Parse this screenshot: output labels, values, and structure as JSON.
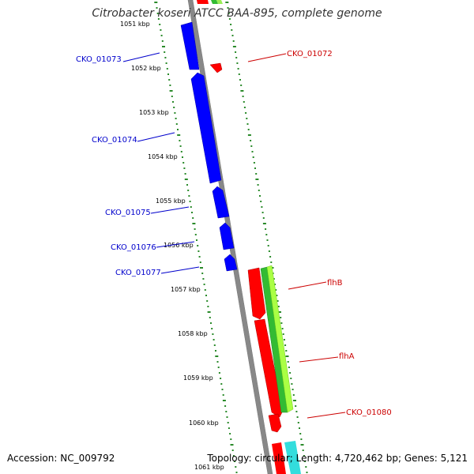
{
  "title": "Citrobacter koseri ATCC BAA-895, complete genome",
  "accession_text": "Accession: NC_009792",
  "summary_text": "Topology: circular; Length: 4,720,462 bp; Genes: 5,121",
  "colors": {
    "backbone": "#888888",
    "forward_strand_label": "#cc0000",
    "reverse_strand_label": "#0000cc",
    "dot_track": "#2a8a2a",
    "gene_blue": "#0000ff",
    "gene_red": "#ff0000",
    "gene_green": "#33bb33",
    "gene_lightgreen": "#aaff44",
    "gene_cyan": "#33dddd"
  },
  "scale": {
    "unit": "kbp",
    "ticks": [
      "1051 kbp",
      "1052 kbp",
      "1053 kbp",
      "1054 kbp",
      "1055 kbp",
      "1056 kbp",
      "1057 kbp",
      "1058 kbp",
      "1059 kbp",
      "1060 kbp",
      "1061 kbp"
    ]
  },
  "genes_reverse": [
    {
      "label": "CKO_01073"
    },
    {
      "label": "CKO_01074"
    },
    {
      "label": "CKO_01075"
    },
    {
      "label": "CKO_01076"
    },
    {
      "label": "CKO_01077"
    }
  ],
  "genes_forward": [
    {
      "label": "CKO_01072"
    },
    {
      "label": "flhB"
    },
    {
      "label": "flhA"
    },
    {
      "label": "CKO_01080"
    }
  ]
}
